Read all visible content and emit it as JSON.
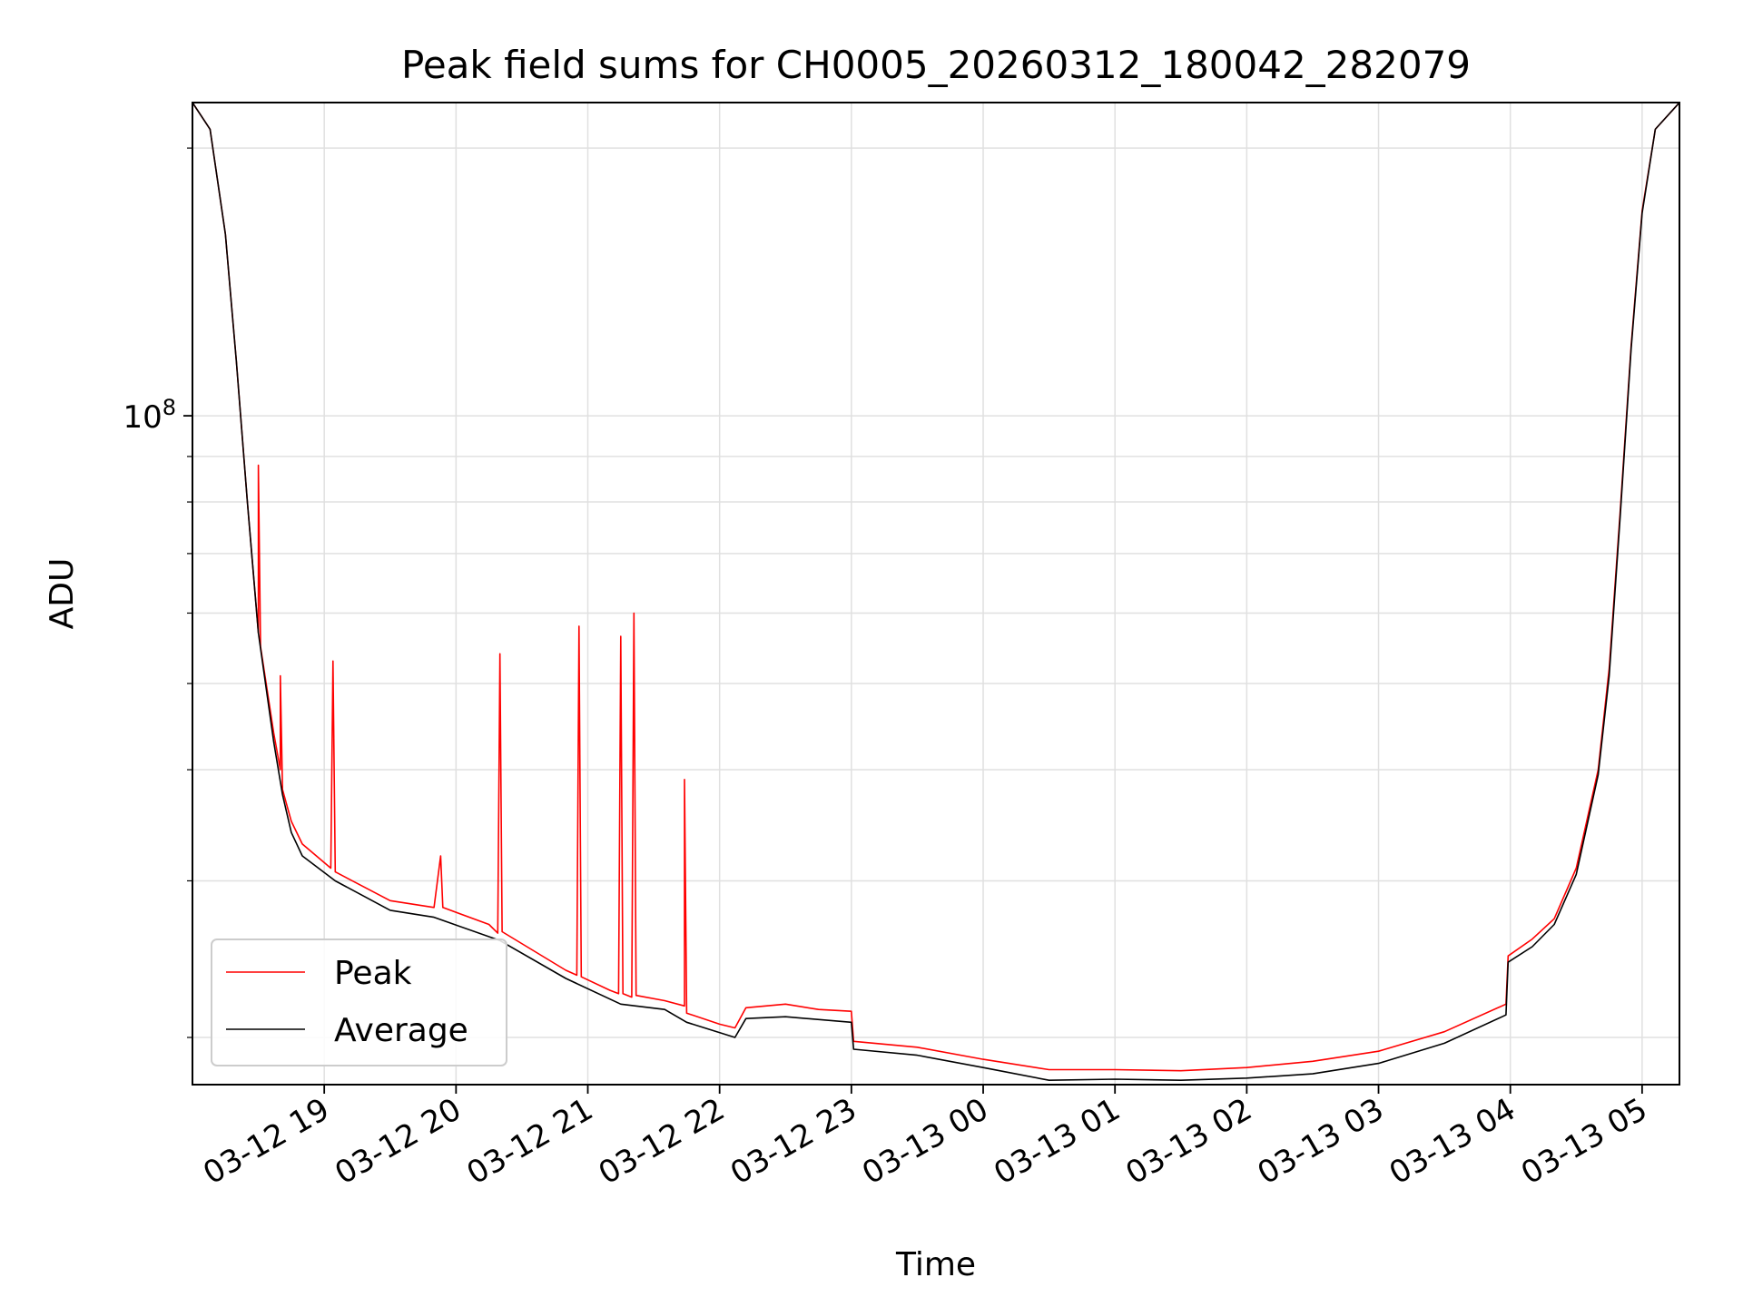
{
  "chart_data": {
    "type": "line",
    "title": "Peak field sums for CH0005_20260312_180042_282079",
    "xlabel": "Time",
    "ylabel": "ADU",
    "yscale": "log",
    "grid": true,
    "legend_position": "lower-left",
    "xlim": [
      "2026-03-12 18:00",
      "2026-03-13 05:17"
    ],
    "ylim": [
      17700000,
      225000000
    ],
    "x_ticks": [
      {
        "x": "2026-03-12 19:00",
        "label": "03-12 19"
      },
      {
        "x": "2026-03-12 20:00",
        "label": "03-12 20"
      },
      {
        "x": "2026-03-12 21:00",
        "label": "03-12 21"
      },
      {
        "x": "2026-03-12 22:00",
        "label": "03-12 22"
      },
      {
        "x": "2026-03-12 23:00",
        "label": "03-12 23"
      },
      {
        "x": "2026-03-13 00:00",
        "label": "03-13 00"
      },
      {
        "x": "2026-03-13 01:00",
        "label": "03-13 01"
      },
      {
        "x": "2026-03-13 02:00",
        "label": "03-13 02"
      },
      {
        "x": "2026-03-13 03:00",
        "label": "03-13 03"
      },
      {
        "x": "2026-03-13 04:00",
        "label": "03-13 04"
      },
      {
        "x": "2026-03-13 05:00",
        "label": "03-13 05"
      }
    ],
    "y_ticks": [
      {
        "y": 100000000,
        "label_base": "10",
        "label_exp": "8"
      }
    ],
    "series": [
      {
        "name": "Peak",
        "color": "#ff0000",
        "points": [
          [
            "2026-03-12 18:00",
            225000000
          ],
          [
            "2026-03-12 18:08",
            210000000
          ],
          [
            "2026-03-12 18:15",
            160000000
          ],
          [
            "2026-03-12 18:20",
            115000000
          ],
          [
            "2026-03-12 18:25",
            80000000
          ],
          [
            "2026-03-12 18:30",
            57000000
          ],
          [
            "2026-03-12 18:30",
            88000000
          ],
          [
            "2026-03-12 18:31",
            55000000
          ],
          [
            "2026-03-12 18:37",
            44000000
          ],
          [
            "2026-03-12 18:40",
            40000000
          ],
          [
            "2026-03-12 18:40",
            51000000
          ],
          [
            "2026-03-12 18:41",
            38000000
          ],
          [
            "2026-03-12 18:45",
            35000000
          ],
          [
            "2026-03-12 18:50",
            33000000
          ],
          [
            "2026-03-12 19:03",
            31000000
          ],
          [
            "2026-03-12 19:04",
            53000000
          ],
          [
            "2026-03-12 19:05",
            30700000
          ],
          [
            "2026-03-12 19:30",
            28500000
          ],
          [
            "2026-03-12 19:50",
            28000000
          ],
          [
            "2026-03-12 19:53",
            32000000
          ],
          [
            "2026-03-12 19:54",
            28000000
          ],
          [
            "2026-03-12 20:15",
            26800000
          ],
          [
            "2026-03-12 20:19",
            26200000
          ],
          [
            "2026-03-12 20:20",
            54000000
          ],
          [
            "2026-03-12 20:21",
            26300000
          ],
          [
            "2026-03-12 20:50",
            23800000
          ],
          [
            "2026-03-12 20:55",
            23500000
          ],
          [
            "2026-03-12 20:56",
            58000000
          ],
          [
            "2026-03-12 20:57",
            23400000
          ],
          [
            "2026-03-12 21:10",
            22600000
          ],
          [
            "2026-03-12 21:14",
            22400000
          ],
          [
            "2026-03-12 21:15",
            56500000
          ],
          [
            "2026-03-12 21:16",
            22400000
          ],
          [
            "2026-03-12 21:20",
            22200000
          ],
          [
            "2026-03-12 21:21",
            60000000
          ],
          [
            "2026-03-12 21:22",
            22300000
          ],
          [
            "2026-03-12 21:35",
            22000000
          ],
          [
            "2026-03-12 21:44",
            21700000
          ],
          [
            "2026-03-12 21:44",
            39000000
          ],
          [
            "2026-03-12 21:45",
            21300000
          ],
          [
            "2026-03-12 22:00",
            20700000
          ],
          [
            "2026-03-12 22:07",
            20500000
          ],
          [
            "2026-03-12 22:12",
            21600000
          ],
          [
            "2026-03-12 22:30",
            21800000
          ],
          [
            "2026-03-12 22:45",
            21500000
          ],
          [
            "2026-03-12 23:00",
            21400000
          ],
          [
            "2026-03-12 23:01",
            19800000
          ],
          [
            "2026-03-12 23:30",
            19500000
          ],
          [
            "2026-03-13 00:00",
            18900000
          ],
          [
            "2026-03-13 00:30",
            18400000
          ],
          [
            "2026-03-13 01:00",
            18400000
          ],
          [
            "2026-03-13 01:30",
            18350000
          ],
          [
            "2026-03-13 02:00",
            18500000
          ],
          [
            "2026-03-13 02:30",
            18800000
          ],
          [
            "2026-03-13 03:00",
            19300000
          ],
          [
            "2026-03-13 03:30",
            20300000
          ],
          [
            "2026-03-13 03:58",
            21800000
          ],
          [
            "2026-03-13 03:59",
            24700000
          ],
          [
            "2026-03-13 04:10",
            25800000
          ],
          [
            "2026-03-13 04:20",
            27200000
          ],
          [
            "2026-03-13 04:30",
            31000000
          ],
          [
            "2026-03-13 04:40",
            40000000
          ],
          [
            "2026-03-13 04:45",
            52000000
          ],
          [
            "2026-03-13 04:50",
            78000000
          ],
          [
            "2026-03-13 04:55",
            120000000
          ],
          [
            "2026-03-13 05:00",
            170000000
          ],
          [
            "2026-03-13 05:06",
            210000000
          ],
          [
            "2026-03-13 05:17",
            225000000
          ]
        ]
      },
      {
        "name": "Average",
        "color": "#000000",
        "points": [
          [
            "2026-03-12 18:00",
            225000000
          ],
          [
            "2026-03-12 18:08",
            210000000
          ],
          [
            "2026-03-12 18:15",
            160000000
          ],
          [
            "2026-03-12 18:20",
            115000000
          ],
          [
            "2026-03-12 18:25",
            80000000
          ],
          [
            "2026-03-12 18:30",
            57000000
          ],
          [
            "2026-03-12 18:37",
            43000000
          ],
          [
            "2026-03-12 18:41",
            37500000
          ],
          [
            "2026-03-12 18:45",
            34000000
          ],
          [
            "2026-03-12 18:50",
            32000000
          ],
          [
            "2026-03-12 19:05",
            30000000
          ],
          [
            "2026-03-12 19:30",
            27800000
          ],
          [
            "2026-03-12 19:50",
            27300000
          ],
          [
            "2026-03-12 20:20",
            25700000
          ],
          [
            "2026-03-12 20:50",
            23300000
          ],
          [
            "2026-03-12 21:15",
            21800000
          ],
          [
            "2026-03-12 21:35",
            21500000
          ],
          [
            "2026-03-12 21:45",
            20800000
          ],
          [
            "2026-03-12 22:07",
            20000000
          ],
          [
            "2026-03-12 22:12",
            21000000
          ],
          [
            "2026-03-12 22:30",
            21100000
          ],
          [
            "2026-03-12 23:00",
            20800000
          ],
          [
            "2026-03-12 23:01",
            19400000
          ],
          [
            "2026-03-12 23:30",
            19100000
          ],
          [
            "2026-03-13 00:00",
            18500000
          ],
          [
            "2026-03-13 00:30",
            17900000
          ],
          [
            "2026-03-13 01:00",
            17950000
          ],
          [
            "2026-03-13 01:30",
            17900000
          ],
          [
            "2026-03-13 02:00",
            18000000
          ],
          [
            "2026-03-13 02:30",
            18200000
          ],
          [
            "2026-03-13 03:00",
            18700000
          ],
          [
            "2026-03-13 03:30",
            19700000
          ],
          [
            "2026-03-13 03:58",
            21200000
          ],
          [
            "2026-03-13 03:59",
            24300000
          ],
          [
            "2026-03-13 04:10",
            25300000
          ],
          [
            "2026-03-13 04:20",
            26800000
          ],
          [
            "2026-03-13 04:30",
            30500000
          ],
          [
            "2026-03-13 04:40",
            39500000
          ],
          [
            "2026-03-13 04:45",
            51000000
          ],
          [
            "2026-03-13 04:50",
            77000000
          ],
          [
            "2026-03-13 04:55",
            119000000
          ],
          [
            "2026-03-13 05:00",
            169000000
          ],
          [
            "2026-03-13 05:06",
            210000000
          ],
          [
            "2026-03-13 05:17",
            225000000
          ]
        ]
      }
    ]
  }
}
